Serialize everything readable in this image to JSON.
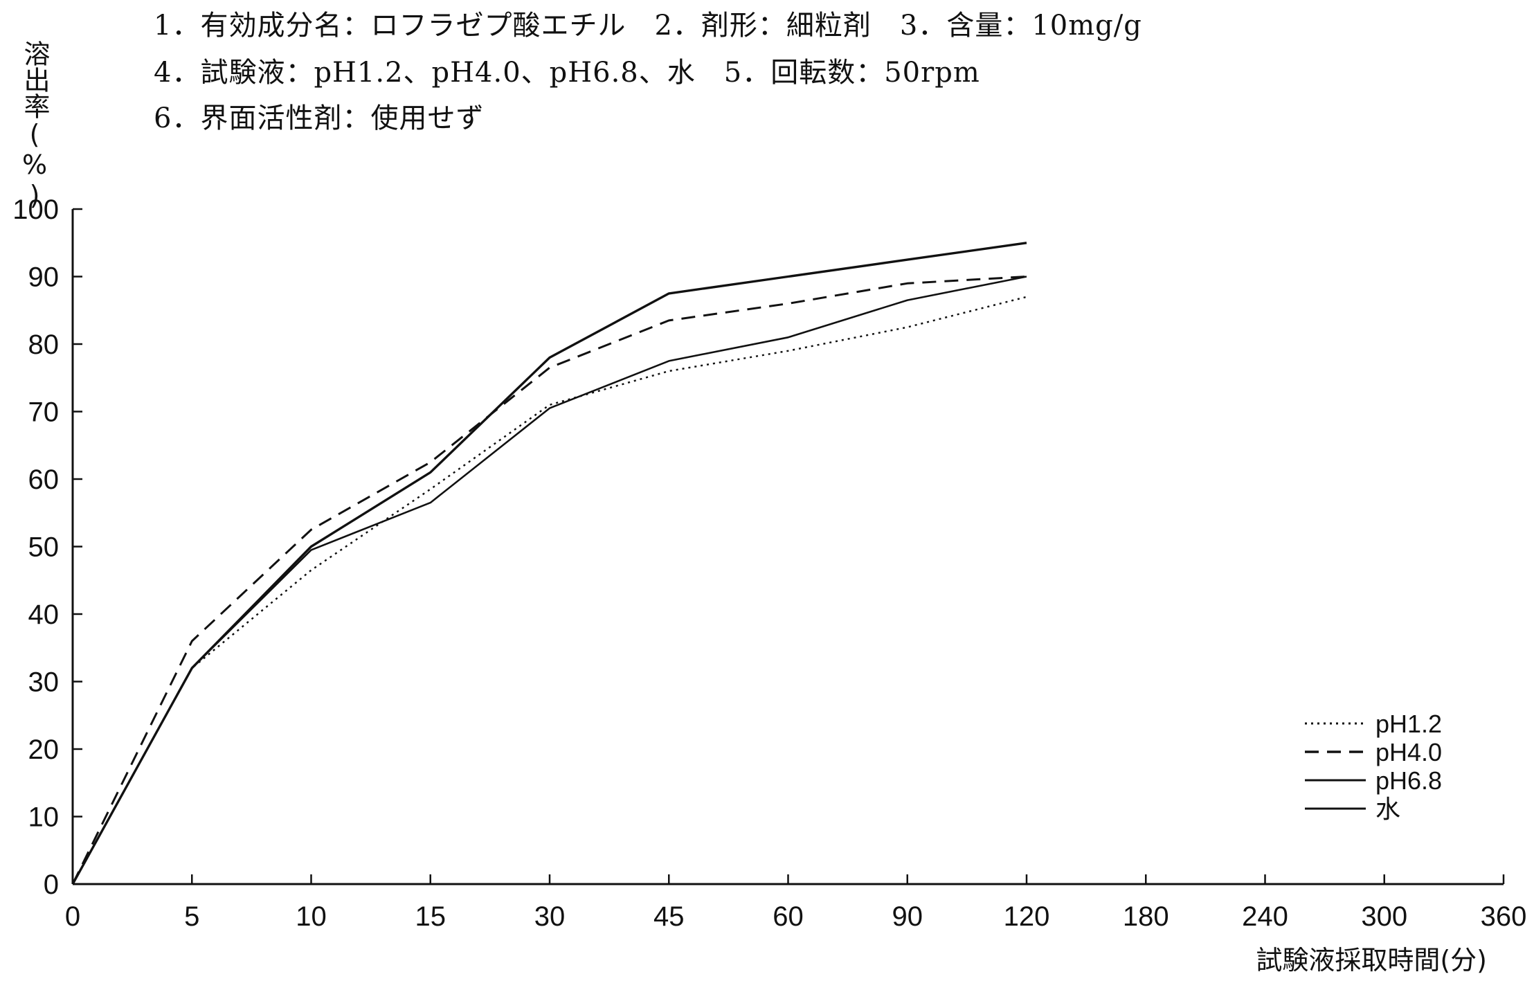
{
  "header": {
    "line1": "1．有効成分名：ロフラゼプ酸エチル　2．剤形：細粒剤　3．含量：10mg/g",
    "line2": "4．試験液：pH1.2、pH4.0、pH6.8、水　5．回転数：50rpm",
    "line3": "6．界面活性剤：使用せず"
  },
  "chart_data": {
    "type": "line",
    "title": "",
    "ylabel": "溶出率(%)",
    "xlabel": "試験液採取時間(分)",
    "categories": [
      "0",
      "5",
      "10",
      "15",
      "30",
      "45",
      "60",
      "90",
      "120",
      "180",
      "240",
      "300",
      "360"
    ],
    "ylim": [
      0,
      100
    ],
    "yticks": [
      0,
      10,
      20,
      30,
      40,
      50,
      60,
      70,
      80,
      90,
      100
    ],
    "grid": false,
    "legend_position": "bottom-right",
    "series": [
      {
        "name": "pH1.2",
        "style": "dotted",
        "color": "#111111",
        "points": [
          [
            0,
            0
          ],
          [
            5,
            32
          ],
          [
            10,
            46.5
          ],
          [
            15,
            58.5
          ],
          [
            30,
            71
          ],
          [
            45,
            76
          ],
          [
            60,
            79
          ],
          [
            90,
            82.5
          ],
          [
            120,
            87
          ]
        ]
      },
      {
        "name": "pH4.0",
        "style": "dashed",
        "color": "#111111",
        "points": [
          [
            0,
            0
          ],
          [
            5,
            36
          ],
          [
            10,
            52.5
          ],
          [
            15,
            62.5
          ],
          [
            30,
            76.5
          ],
          [
            45,
            83.5
          ],
          [
            60,
            86
          ],
          [
            90,
            89
          ],
          [
            120,
            90
          ]
        ]
      },
      {
        "name": "pH6.8",
        "style": "solid",
        "color": "#111111",
        "points": [
          [
            0,
            0
          ],
          [
            5,
            32
          ],
          [
            10,
            49.5
          ],
          [
            15,
            56.5
          ],
          [
            30,
            70.5
          ],
          [
            45,
            77.5
          ],
          [
            60,
            81
          ],
          [
            90,
            86.5
          ],
          [
            120,
            90
          ]
        ]
      },
      {
        "name": "水",
        "style": "solid",
        "color": "#111111",
        "points": [
          [
            0,
            0
          ],
          [
            5,
            32
          ],
          [
            10,
            50
          ],
          [
            15,
            61
          ],
          [
            30,
            78
          ],
          [
            45,
            87.5
          ],
          [
            60,
            90
          ],
          [
            90,
            92.5
          ],
          [
            120,
            95
          ]
        ]
      }
    ]
  }
}
